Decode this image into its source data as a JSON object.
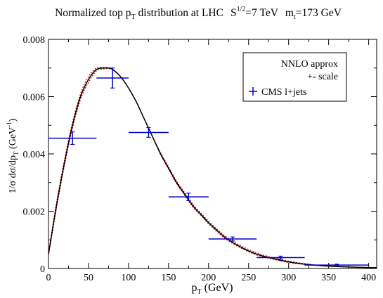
{
  "title": {
    "main": "Normalized top p",
    "main_sub": "T",
    "tail": " distribution at LHC",
    "energy_base": "S",
    "energy_sup": "1/2",
    "energy_value": "=7 TeV",
    "mass_base": "m",
    "mass_sub": "t",
    "mass_value": "=173 GeV"
  },
  "axes": {
    "x_label_base": "p",
    "x_label_sub": "T",
    "x_label_unit": " (GeV)",
    "y_label_main": "1/σ  dσ/dp",
    "y_label_sub": "T",
    "y_label_unit_open": " (GeV",
    "y_label_unit_sup": "-1",
    "y_label_unit_close": ")"
  },
  "legend": {
    "line1": "NNLO  approx",
    "line2": "+- scale",
    "data_label": "CMS l+jets"
  },
  "colors": {
    "central": "#000000",
    "scale_band": "#cc0000",
    "data": "#0000cc"
  },
  "chart_data": {
    "type": "line",
    "xlim": [
      0,
      410
    ],
    "ylim": [
      0,
      0.008
    ],
    "x_ticks": [
      0,
      50,
      100,
      150,
      200,
      250,
      300,
      350,
      400
    ],
    "y_ticks": [
      0,
      0.002,
      0.004,
      0.006,
      0.008
    ],
    "x_tick_labels": [
      "0",
      "50",
      "100",
      "150",
      "200",
      "250",
      "300",
      "350",
      "400"
    ],
    "y_tick_labels": [
      "0",
      "0.002",
      "0.004",
      "0.006",
      "0.008"
    ],
    "grid": false,
    "legend_position": "top-right",
    "series": [
      {
        "name": "NNLO  approx",
        "style": "solid",
        "x": [
          0,
          10,
          20,
          30,
          40,
          50,
          60,
          70,
          75,
          80,
          90,
          100,
          110,
          120,
          130,
          140,
          150,
          160,
          170,
          180,
          190,
          200,
          220,
          240,
          260,
          280,
          300,
          320,
          340,
          360,
          380,
          400,
          410
        ],
        "y": [
          0.0005,
          0.0022,
          0.0037,
          0.005,
          0.006,
          0.0066,
          0.00695,
          0.007,
          0.007,
          0.00695,
          0.0067,
          0.0063,
          0.0058,
          0.0052,
          0.0046,
          0.004,
          0.0035,
          0.003,
          0.0026,
          0.0022,
          0.0019,
          0.0016,
          0.0011,
          0.00075,
          0.0005,
          0.00035,
          0.00023,
          0.00015,
          0.0001,
          7e-05,
          5e-05,
          3e-05,
          3e-05
        ]
      },
      {
        "name": "+- scale (upper)",
        "style": "dotted",
        "x": [
          0,
          10,
          20,
          30,
          40,
          50,
          60,
          70,
          75,
          80,
          90,
          100,
          110,
          120,
          130,
          140,
          150,
          160,
          170,
          180,
          190,
          200,
          220,
          240,
          260,
          280,
          300,
          320,
          340,
          360,
          380,
          400,
          410
        ],
        "y": [
          0.00055,
          0.0023,
          0.0038,
          0.0051,
          0.0061,
          0.0067,
          0.007,
          0.00702,
          0.00701,
          0.00696,
          0.0067,
          0.0063,
          0.0058,
          0.0052,
          0.0046,
          0.00405,
          0.00355,
          0.00305,
          0.00265,
          0.00225,
          0.00195,
          0.00165,
          0.00115,
          0.0008,
          0.00055,
          0.00038,
          0.00026,
          0.00017,
          0.00011,
          8e-05,
          5e-05,
          4e-05,
          3e-05
        ]
      },
      {
        "name": "+- scale (lower)",
        "style": "dotted",
        "x": [
          0,
          10,
          20,
          30,
          40,
          50,
          60,
          70,
          75,
          80,
          90,
          100,
          110,
          120,
          130,
          140,
          150,
          160,
          170,
          180,
          190,
          200,
          220,
          240,
          260,
          280,
          300,
          320,
          340,
          360,
          380,
          400,
          410
        ],
        "y": [
          0.00045,
          0.0021,
          0.0036,
          0.0049,
          0.0059,
          0.0065,
          0.0069,
          0.00697,
          0.00698,
          0.00694,
          0.0067,
          0.0063,
          0.0058,
          0.0052,
          0.0046,
          0.00398,
          0.00346,
          0.00296,
          0.00256,
          0.00216,
          0.00186,
          0.00156,
          0.00106,
          0.00072,
          0.00047,
          0.00033,
          0.00021,
          0.00014,
          9e-05,
          6e-05,
          4e-05,
          3e-05,
          2e-05
        ]
      }
    ],
    "data_points": {
      "name": "CMS l+jets",
      "x": [
        30,
        80,
        125,
        175,
        230,
        290,
        360
      ],
      "y": [
        0.00455,
        0.00665,
        0.00475,
        0.0025,
        0.00103,
        0.00038,
        0.00012
      ],
      "x_low": [
        0,
        60,
        100,
        150,
        200,
        260,
        320
      ],
      "x_high": [
        60,
        100,
        150,
        200,
        260,
        320,
        400
      ],
      "y_err": [
        0.00022,
        0.00035,
        0.00017,
        0.00013,
        7e-05,
        5e-05,
        3e-05
      ]
    }
  }
}
